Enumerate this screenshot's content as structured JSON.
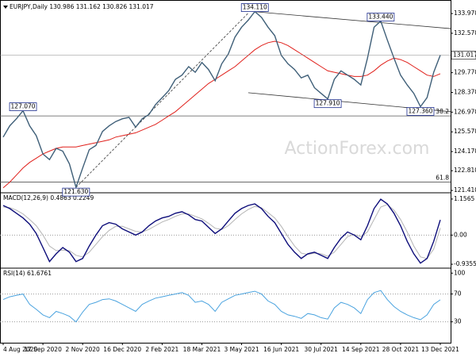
{
  "chart_data": [
    {
      "type": "line",
      "title": "EURJPY,Daily  130.986 131.162 130.826 131.017",
      "watermark": "ActionForex.com",
      "ylim": [
        121.3,
        134.65
      ],
      "yticks": [
        {
          "value": 133.97,
          "label": "133.970"
        },
        {
          "value": 132.57,
          "label": "132.570"
        },
        {
          "value": 129.77,
          "label": "129.770"
        },
        {
          "value": 128.37,
          "label": "128.370"
        },
        {
          "value": 126.97,
          "label": "126.970"
        },
        {
          "value": 125.57,
          "label": "125.570"
        },
        {
          "value": 124.17,
          "label": "124.170"
        },
        {
          "value": 122.81,
          "label": "122.810"
        },
        {
          "value": 121.41,
          "label": "121.410"
        }
      ],
      "series": [
        {
          "name": "EURJPY",
          "color": "#3f5f78",
          "values": [
            125.2,
            126.0,
            126.5,
            127.07,
            126.0,
            125.3,
            124.0,
            123.6,
            124.4,
            124.2,
            123.3,
            121.63,
            123.0,
            124.3,
            124.6,
            125.6,
            126.0,
            126.3,
            126.5,
            126.6,
            125.9,
            126.5,
            126.8,
            127.5,
            128.0,
            128.5,
            129.3,
            129.6,
            130.2,
            129.8,
            130.5,
            130.0,
            129.2,
            130.4,
            131.1,
            132.3,
            133.0,
            133.5,
            134.11,
            133.7,
            133.0,
            132.4,
            131.0,
            130.4,
            130.0,
            129.4,
            129.6,
            128.7,
            128.3,
            127.91,
            129.3,
            129.9,
            129.6,
            129.3,
            128.9,
            130.8,
            133.0,
            133.44,
            132.1,
            130.8,
            129.6,
            128.9,
            128.3,
            127.36,
            128.0,
            129.8,
            131.017
          ],
          "last_label": "131.017"
        },
        {
          "name": "MA",
          "color": "#e0201b",
          "values": [
            121.6,
            122.0,
            122.5,
            123.0,
            123.4,
            123.7,
            124.0,
            124.2,
            124.4,
            124.5,
            124.5,
            124.5,
            124.6,
            124.7,
            124.8,
            124.9,
            125.0,
            125.2,
            125.3,
            125.4,
            125.5,
            125.7,
            125.9,
            126.1,
            126.4,
            126.7,
            127.0,
            127.4,
            127.8,
            128.2,
            128.6,
            129.0,
            129.3,
            129.6,
            129.9,
            130.2,
            130.6,
            131.0,
            131.4,
            131.7,
            131.9,
            132.0,
            131.9,
            131.7,
            131.4,
            131.1,
            130.8,
            130.5,
            130.2,
            129.9,
            129.8,
            129.7,
            129.6,
            129.5,
            129.5,
            129.6,
            129.9,
            130.3,
            130.6,
            130.8,
            130.7,
            130.5,
            130.2,
            129.9,
            129.6,
            129.5,
            129.7
          ]
        }
      ],
      "annotations": [
        {
          "label": "134.110",
          "x": 38,
          "y": 134.11
        },
        {
          "label": "133.440",
          "x": 57,
          "y": 133.44
        },
        {
          "label": "127.910",
          "x": 49,
          "y": 127.91
        },
        {
          "label": "127.360",
          "x": 63,
          "y": 127.36
        },
        {
          "label": "127.070",
          "x": 3,
          "y": 127.07
        },
        {
          "label": "121.630",
          "x": 11,
          "y": 121.63
        }
      ],
      "levels": [
        {
          "label": "38.2",
          "value": 126.7
        },
        {
          "label": "61.8",
          "value": 122.0
        }
      ],
      "trendlines": [
        {
          "from": [
            11,
            121.63
          ],
          "to": [
            37,
            134.0
          ],
          "style": "dashed"
        },
        {
          "from": [
            38,
            134.1
          ],
          "to": [
            68,
            132.9
          ],
          "style": "solid"
        },
        {
          "from": [
            37,
            128.35
          ],
          "to": [
            68,
            127.0
          ],
          "style": "solid"
        }
      ]
    },
    {
      "type": "line",
      "title": "MACD(12,26,9) 0.4863 0.2249",
      "ylim": [
        -1.036,
        1.332
      ],
      "yticks": [
        {
          "value": 1.1565,
          "label": "1.1565"
        },
        {
          "value": 0,
          "label": "0.00"
        },
        {
          "value": -0.9355,
          "label": "-0.9355"
        }
      ],
      "grid": [
        0
      ],
      "series": [
        {
          "name": "MACD",
          "color": "#0d0d7a",
          "values": [
            0.95,
            0.85,
            0.7,
            0.55,
            0.35,
            0.05,
            -0.4,
            -0.85,
            -0.6,
            -0.4,
            -0.55,
            -0.85,
            -0.75,
            -0.35,
            0.0,
            0.3,
            0.4,
            0.35,
            0.2,
            0.1,
            0.0,
            0.1,
            0.3,
            0.45,
            0.55,
            0.6,
            0.7,
            0.75,
            0.65,
            0.5,
            0.45,
            0.25,
            0.05,
            0.2,
            0.45,
            0.7,
            0.85,
            0.95,
            1.0,
            0.85,
            0.6,
            0.4,
            0.05,
            -0.3,
            -0.55,
            -0.75,
            -0.6,
            -0.55,
            -0.65,
            -0.75,
            -0.4,
            -0.1,
            0.1,
            0.0,
            -0.15,
            0.3,
            0.85,
            1.15,
            1.0,
            0.7,
            0.3,
            -0.2,
            -0.6,
            -0.9,
            -0.75,
            -0.2,
            0.4863
          ]
        },
        {
          "name": "Signal",
          "color": "#b4b4b4",
          "values": [
            0.9,
            0.88,
            0.8,
            0.68,
            0.5,
            0.3,
            0.0,
            -0.35,
            -0.5,
            -0.48,
            -0.5,
            -0.65,
            -0.7,
            -0.55,
            -0.3,
            -0.05,
            0.15,
            0.28,
            0.28,
            0.2,
            0.12,
            0.1,
            0.18,
            0.3,
            0.42,
            0.5,
            0.6,
            0.68,
            0.68,
            0.6,
            0.52,
            0.38,
            0.22,
            0.18,
            0.3,
            0.5,
            0.68,
            0.82,
            0.92,
            0.88,
            0.72,
            0.55,
            0.28,
            -0.05,
            -0.35,
            -0.58,
            -0.62,
            -0.58,
            -0.6,
            -0.68,
            -0.55,
            -0.3,
            -0.05,
            0.02,
            -0.05,
            0.1,
            0.5,
            0.9,
            0.98,
            0.8,
            0.5,
            0.1,
            -0.35,
            -0.7,
            -0.75,
            -0.45,
            0.2249
          ]
        }
      ]
    },
    {
      "type": "line",
      "title": "RSI(14) 61.6761",
      "ylim": [
        0,
        106
      ],
      "yticks": [
        100,
        70,
        30
      ],
      "grid": [
        70,
        30
      ],
      "categories": [
        "4 Aug 2020",
        null,
        null,
        null,
        null,
        null,
        "17 Sep 2020",
        null,
        null,
        null,
        null,
        null,
        "2 Nov 2020",
        null,
        null,
        null,
        null,
        null,
        "16 Dec 2020",
        null,
        null,
        null,
        null,
        null,
        "2 Feb 2021",
        null,
        null,
        null,
        null,
        null,
        "18 Mar 2021",
        null,
        null,
        null,
        null,
        null,
        "3 May 2021",
        null,
        null,
        null,
        null,
        null,
        "16 Jun 2021",
        null,
        null,
        null,
        null,
        null,
        "30 Jul 2021",
        null,
        null,
        null,
        null,
        null,
        "14 Sep 2021",
        null,
        null,
        null,
        null,
        null,
        "28 Oct 2021",
        null,
        null,
        null,
        null,
        null,
        "13 Dec 2021"
      ],
      "series": [
        {
          "name": "RSI",
          "color": "#4aa3df",
          "values": [
            62,
            66,
            68,
            70,
            55,
            48,
            40,
            36,
            45,
            42,
            38,
            30,
            44,
            55,
            58,
            62,
            63,
            60,
            55,
            50,
            45,
            55,
            60,
            64,
            66,
            68,
            70,
            72,
            68,
            58,
            60,
            55,
            45,
            58,
            63,
            68,
            70,
            72,
            74,
            70,
            60,
            55,
            45,
            40,
            38,
            35,
            42,
            40,
            36,
            34,
            50,
            58,
            55,
            50,
            42,
            62,
            72,
            75,
            62,
            52,
            45,
            40,
            36,
            33,
            40,
            55,
            61.6761
          ]
        }
      ]
    }
  ]
}
